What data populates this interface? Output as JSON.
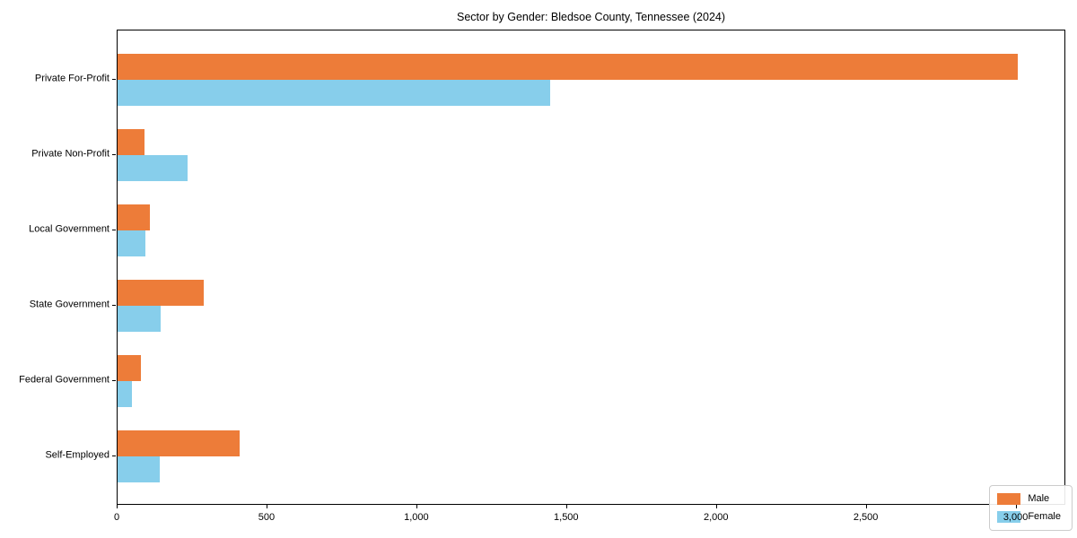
{
  "title": "Sector by Gender: Bledsoe County, Tennessee (2024)",
  "chart_data": {
    "type": "bar",
    "orientation": "horizontal",
    "title": "Sector by Gender: Bledsoe County, Tennessee (2024)",
    "xlabel": "",
    "ylabel": "",
    "categories": [
      "Private For-Profit",
      "Private Non-Profit",
      "Local Government",
      "State Government",
      "Federal Government",
      "Self-Employed"
    ],
    "series": [
      {
        "name": "Male",
        "color": "#ed7c39",
        "values": [
          3004,
          90,
          108,
          287,
          78,
          407
        ]
      },
      {
        "name": "Female",
        "color": "#87ceeb",
        "values": [
          1445,
          233,
          93,
          144,
          48,
          141
        ]
      }
    ],
    "xlim": [
      0,
      3160
    ],
    "xticks": [
      0,
      500,
      1000,
      1500,
      2000,
      2500,
      3000
    ],
    "xtick_labels": [
      "0",
      "500",
      "1,000",
      "1,500",
      "2,000",
      "2,500",
      "3,000"
    ],
    "grid": false,
    "legend": {
      "position": "lower right",
      "entries": [
        "Male",
        "Female"
      ]
    }
  },
  "colors": {
    "male": "#ed7c39",
    "female": "#87ceeb",
    "spine": "#000000",
    "legend_border": "#cccccc",
    "background": "#ffffff"
  }
}
